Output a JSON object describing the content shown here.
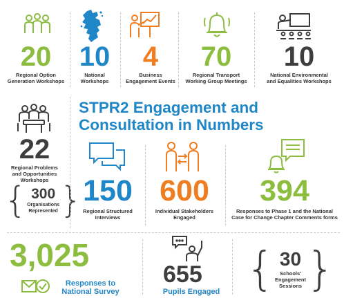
{
  "colors": {
    "green": "#8cbd3f",
    "blue": "#1f86c8",
    "orange": "#ef7d22",
    "dark": "#3d3d3d"
  },
  "title": {
    "line1": "STPR2 Engagement and",
    "line2": "Consultation in Numbers"
  },
  "top_row": [
    {
      "number": "20",
      "label_line1": "Regional Option",
      "label_line2": "Generation Workshops",
      "icon": "group-people-icon"
    },
    {
      "number": "10",
      "label_line1": "National",
      "label_line2": "Workshops",
      "icon": "scotland-map-icon"
    },
    {
      "number": "4",
      "label_line1": "Business",
      "label_line2": "Engagement Events",
      "icon": "presenter-chart-icon"
    },
    {
      "number": "70",
      "label_line1": "Regional Transport",
      "label_line2": "Working Group Meetings",
      "icon": "bell-icon"
    },
    {
      "number": "10",
      "label_line1": "National Environmental",
      "label_line2": "and Equalities Workshops",
      "icon": "classroom-presentation-icon"
    }
  ],
  "problems": {
    "number": "22",
    "label_line1": "Regional Problems",
    "label_line2": "and Opportunities",
    "label_line3": "Workshops",
    "icon": "meeting-table-icon"
  },
  "organisations": {
    "number": "300",
    "label_line1": "Organisations",
    "label_line2": "Represented"
  },
  "interviews": {
    "number": "150",
    "label_line1": "Regional Structured",
    "label_line2": "Interviews",
    "icon": "speech-bubbles-icon"
  },
  "stakeholders": {
    "number": "600",
    "label_line1": "Individual Stakeholders",
    "label_line2": "Engaged",
    "icon": "people-exchange-icon"
  },
  "responses_phase": {
    "number": "394",
    "label_line1": "Responses to Phase 1 and the National",
    "label_line2": "Case for Change Chapter Comments forms",
    "icon": "notification-bubble-icon"
  },
  "survey": {
    "number": "3,025",
    "label_line1": "Responses to",
    "label_line2": "National Survey",
    "icon": "mail-check-icon"
  },
  "pupils": {
    "number": "655",
    "label": "Pupils Engaged",
    "icon": "raised-hand-icon"
  },
  "schools": {
    "number": "30",
    "label_line1": "Schools'",
    "label_line2": "Engagement",
    "label_line3": "Sessions"
  }
}
